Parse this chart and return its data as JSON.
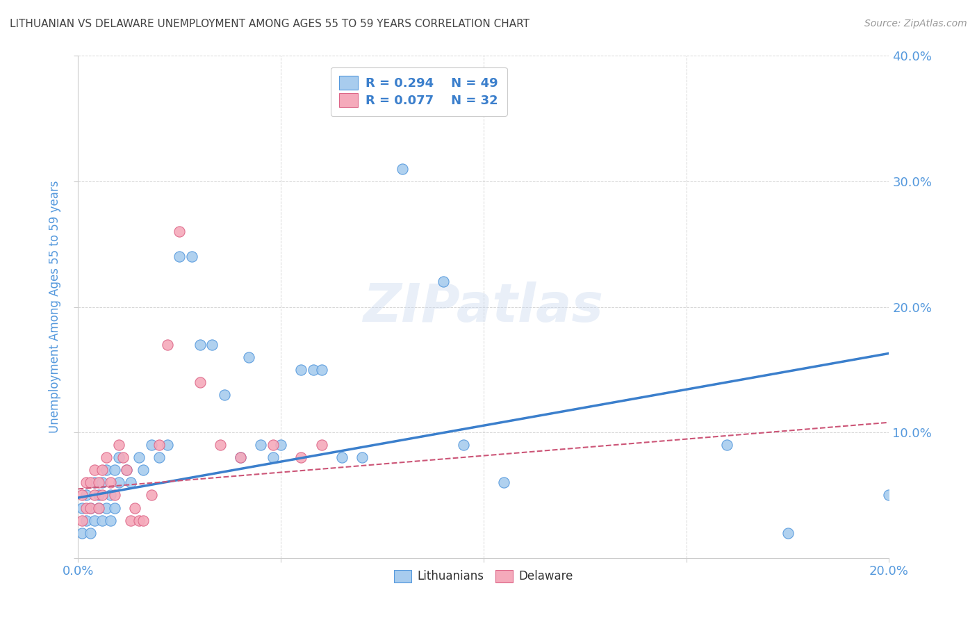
{
  "title": "LITHUANIAN VS DELAWARE UNEMPLOYMENT AMONG AGES 55 TO 59 YEARS CORRELATION CHART",
  "source": "Source: ZipAtlas.com",
  "ylabel": "Unemployment Among Ages 55 to 59 years",
  "xlim": [
    0.0,
    0.2
  ],
  "ylim": [
    0.0,
    0.4
  ],
  "xticks": [
    0.0,
    0.05,
    0.1,
    0.15,
    0.2
  ],
  "yticks": [
    0.0,
    0.1,
    0.2,
    0.3,
    0.4
  ],
  "blue_color": "#A8CCEE",
  "pink_color": "#F5AABB",
  "blue_edge_color": "#5599DD",
  "pink_edge_color": "#DD6688",
  "blue_line_color": "#3B7FCC",
  "pink_line_color": "#CC5577",
  "legend_R1": "R = 0.294",
  "legend_N1": "N = 49",
  "legend_R2": "R = 0.077",
  "legend_N2": "N = 32",
  "legend_label1": "Lithuanians",
  "legend_label2": "Delaware",
  "watermark": "ZIPatlas",
  "blue_line_x": [
    0.0,
    0.2
  ],
  "blue_line_y": [
    0.048,
    0.163
  ],
  "pink_line_x": [
    0.0,
    0.2
  ],
  "pink_line_y": [
    0.055,
    0.108
  ],
  "blue_scatter_x": [
    0.001,
    0.001,
    0.002,
    0.002,
    0.003,
    0.003,
    0.004,
    0.004,
    0.005,
    0.005,
    0.006,
    0.006,
    0.007,
    0.007,
    0.008,
    0.008,
    0.009,
    0.009,
    0.01,
    0.01,
    0.012,
    0.013,
    0.015,
    0.016,
    0.018,
    0.02,
    0.022,
    0.025,
    0.028,
    0.03,
    0.033,
    0.036,
    0.04,
    0.042,
    0.045,
    0.048,
    0.05,
    0.055,
    0.058,
    0.06,
    0.065,
    0.07,
    0.08,
    0.09,
    0.095,
    0.105,
    0.16,
    0.175,
    0.2
  ],
  "blue_scatter_y": [
    0.02,
    0.04,
    0.03,
    0.05,
    0.02,
    0.04,
    0.03,
    0.06,
    0.04,
    0.05,
    0.03,
    0.06,
    0.04,
    0.07,
    0.03,
    0.05,
    0.04,
    0.07,
    0.06,
    0.08,
    0.07,
    0.06,
    0.08,
    0.07,
    0.09,
    0.08,
    0.09,
    0.24,
    0.24,
    0.17,
    0.17,
    0.13,
    0.08,
    0.16,
    0.09,
    0.08,
    0.09,
    0.15,
    0.15,
    0.15,
    0.08,
    0.08,
    0.31,
    0.22,
    0.09,
    0.06,
    0.09,
    0.02,
    0.05
  ],
  "pink_scatter_x": [
    0.001,
    0.001,
    0.002,
    0.002,
    0.003,
    0.003,
    0.004,
    0.004,
    0.005,
    0.005,
    0.006,
    0.006,
    0.007,
    0.008,
    0.009,
    0.01,
    0.011,
    0.012,
    0.013,
    0.014,
    0.015,
    0.016,
    0.018,
    0.02,
    0.022,
    0.025,
    0.03,
    0.035,
    0.04,
    0.048,
    0.055,
    0.06
  ],
  "pink_scatter_y": [
    0.03,
    0.05,
    0.04,
    0.06,
    0.04,
    0.06,
    0.05,
    0.07,
    0.04,
    0.06,
    0.05,
    0.07,
    0.08,
    0.06,
    0.05,
    0.09,
    0.08,
    0.07,
    0.03,
    0.04,
    0.03,
    0.03,
    0.05,
    0.09,
    0.17,
    0.26,
    0.14,
    0.09,
    0.08,
    0.09,
    0.08,
    0.09
  ],
  "background_color": "#FFFFFF",
  "grid_color": "#CCCCCC",
  "title_color": "#444444",
  "tick_label_color": "#5599DD"
}
